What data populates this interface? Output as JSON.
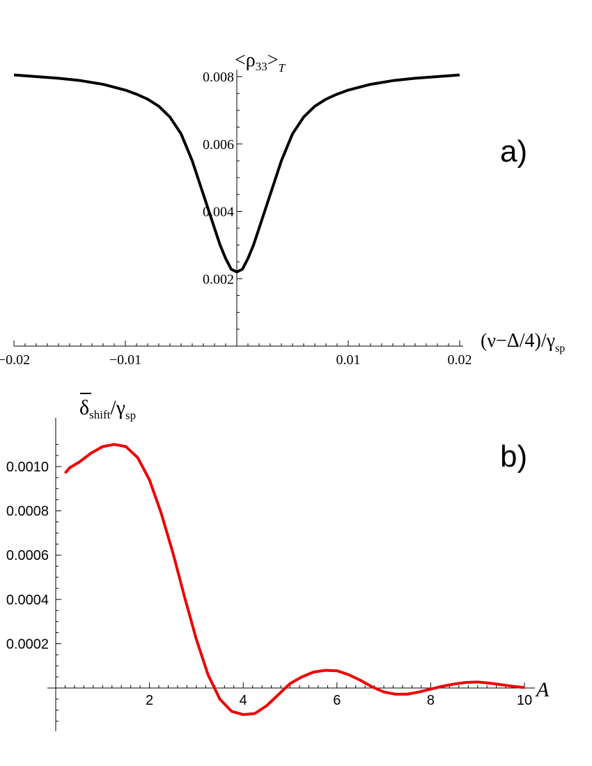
{
  "chart_data": [
    {
      "type": "line",
      "panel_label": "a)",
      "xlabel": "(ν−Δ/4)/γ",
      "xlabel_sub": "sp",
      "ylabel": "<ρ",
      "ylabel_sub": "33",
      "ylabel_close": ">",
      "ylabel_sub2": "T",
      "xlim": [
        -0.02,
        0.02
      ],
      "ylim": [
        0,
        0.0082
      ],
      "x_ticks": [
        {
          "v": -0.02,
          "label": "−0.02"
        },
        {
          "v": -0.01,
          "label": "−0.01"
        },
        {
          "v": 0.01,
          "label": "0.01"
        },
        {
          "v": 0.02,
          "label": "0.02"
        }
      ],
      "y_ticks": [
        {
          "v": 0.002,
          "label": "0.002"
        },
        {
          "v": 0.004,
          "label": "0.004"
        },
        {
          "v": 0.006,
          "label": "0.006"
        },
        {
          "v": 0.008,
          "label": "0.008"
        }
      ],
      "grid": false,
      "series": [
        {
          "color": "#000000",
          "x": [
            -0.02,
            -0.018,
            -0.016,
            -0.014,
            -0.012,
            -0.01,
            -0.009,
            -0.008,
            -0.007,
            -0.006,
            -0.005,
            -0.004,
            -0.0035,
            -0.003,
            -0.0025,
            -0.002,
            -0.0015,
            -0.001,
            -0.0005,
            0.0,
            0.0005,
            0.001,
            0.0015,
            0.002,
            0.0025,
            0.003,
            0.0035,
            0.004,
            0.005,
            0.006,
            0.007,
            0.008,
            0.009,
            0.01,
            0.012,
            0.014,
            0.016,
            0.018,
            0.02
          ],
          "y": [
            0.00805,
            0.008,
            0.00795,
            0.00788,
            0.00777,
            0.0076,
            0.00748,
            0.00733,
            0.00712,
            0.0068,
            0.0063,
            0.0055,
            0.005,
            0.0045,
            0.004,
            0.0035,
            0.003,
            0.0026,
            0.00228,
            0.0022,
            0.00228,
            0.0026,
            0.003,
            0.0035,
            0.004,
            0.0045,
            0.005,
            0.0055,
            0.0063,
            0.0068,
            0.00712,
            0.00733,
            0.00748,
            0.0076,
            0.00777,
            0.00788,
            0.00795,
            0.008,
            0.00805
          ]
        }
      ]
    },
    {
      "type": "line",
      "panel_label": "b)",
      "xlabel": "A",
      "ylabel": "δ",
      "ylabel_sub": "shift",
      "ylabel_rest": "/γ",
      "ylabel_sub2": "sp",
      "xlim": [
        0,
        10
      ],
      "ylim": [
        -0.0001,
        0.0011
      ],
      "x_ticks": [
        {
          "v": 2,
          "label": "2"
        },
        {
          "v": 4,
          "label": "4"
        },
        {
          "v": 6,
          "label": "6"
        },
        {
          "v": 8,
          "label": "8"
        },
        {
          "v": 10,
          "label": "10"
        }
      ],
      "y_ticks": [
        {
          "v": 0.0002,
          "label": "0.0002"
        },
        {
          "v": 0.0004,
          "label": "0.0004"
        },
        {
          "v": 0.0006,
          "label": "0.0006"
        },
        {
          "v": 0.0008,
          "label": "0.0008"
        },
        {
          "v": 0.001,
          "label": "0.0010"
        }
      ],
      "grid": false,
      "series": [
        {
          "color": "#ee0000",
          "x": [
            0.2,
            0.3,
            0.5,
            0.75,
            1.0,
            1.25,
            1.5,
            1.75,
            2.0,
            2.25,
            2.5,
            2.75,
            3.0,
            3.25,
            3.5,
            3.75,
            4.0,
            4.25,
            4.5,
            4.75,
            5.0,
            5.25,
            5.5,
            5.75,
            6.0,
            6.25,
            6.5,
            6.75,
            7.0,
            7.25,
            7.5,
            7.75,
            8.0,
            8.25,
            8.5,
            8.75,
            9.0,
            9.25,
            9.5,
            9.75,
            10.0
          ],
          "y": [
            0.00097,
            0.000995,
            0.00102,
            0.00106,
            0.00109,
            0.0011,
            0.00109,
            0.00104,
            0.00094,
            0.00079,
            0.00061,
            0.00041,
            0.00022,
            6e-05,
            -5e-05,
            -0.000105,
            -0.00012,
            -0.000115,
            -8e-05,
            -3e-05,
            2e-05,
            5e-05,
            7.2e-05,
            8e-05,
            7.8e-05,
            6e-05,
            3.5e-05,
            5e-06,
            -1.8e-05,
            -2.8e-05,
            -2.8e-05,
            -1.8e-05,
            -5e-06,
            8e-06,
            1.8e-05,
            2.5e-05,
            2.7e-05,
            2.2e-05,
            1.5e-05,
            8e-06,
            2e-06
          ]
        }
      ]
    }
  ]
}
